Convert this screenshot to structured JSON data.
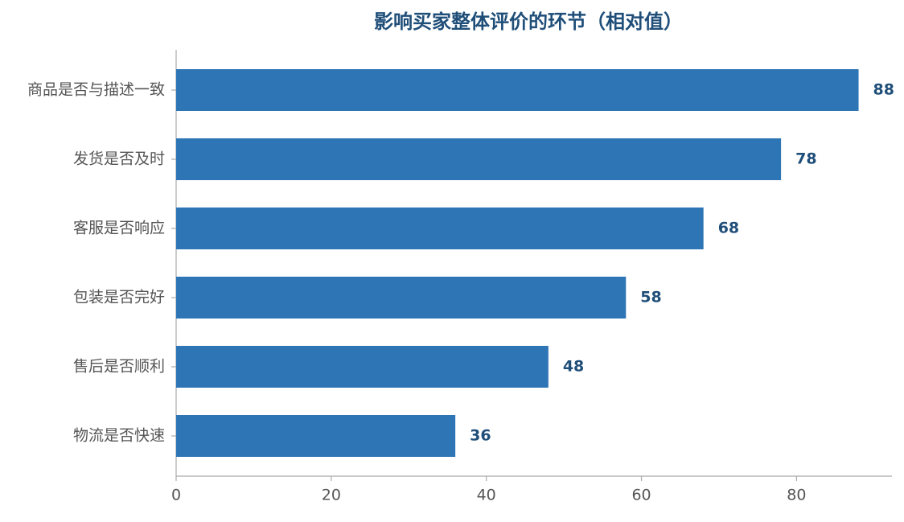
{
  "chart_data": {
    "type": "barh",
    "title": "影响买家整体评价的环节（相对值）",
    "categories": [
      "商品是否与描述一致",
      "发货是否及时",
      "客服是否响应",
      "包装是否完好",
      "售后是否顺利",
      "物流是否快速"
    ],
    "values": [
      88,
      78,
      68,
      58,
      48,
      36
    ],
    "color": "#2e75b6",
    "xlim": [
      0,
      92.3
    ],
    "xticks": [
      0,
      20,
      40,
      60,
      80
    ],
    "grid": false
  }
}
